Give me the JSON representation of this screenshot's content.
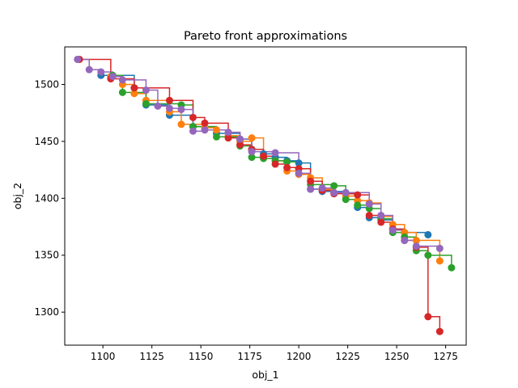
{
  "chart_data": {
    "type": "line",
    "title": "Pareto front approximations",
    "xlabel": "obj_1",
    "ylabel": "obj_2",
    "xlim": [
      1080.5,
      1285.5
    ],
    "ylim": [
      1271,
      1533
    ],
    "xticks": [
      1100,
      1125,
      1150,
      1175,
      1200,
      1225,
      1250,
      1275
    ],
    "yticks": [
      1300,
      1350,
      1400,
      1450,
      1500
    ],
    "grid": false,
    "legend": "none",
    "step_style": "post",
    "series": [
      {
        "color": "#1f77b4",
        "points": [
          [
            1099,
            1508
          ],
          [
            1116,
            1497
          ],
          [
            1122,
            1482
          ],
          [
            1134,
            1473
          ],
          [
            1146,
            1463
          ],
          [
            1158,
            1457
          ],
          [
            1170,
            1452
          ],
          [
            1176,
            1443
          ],
          [
            1182,
            1439
          ],
          [
            1188,
            1436
          ],
          [
            1194,
            1433
          ],
          [
            1200,
            1431
          ],
          [
            1206,
            1408
          ],
          [
            1212,
            1406
          ],
          [
            1224,
            1404
          ],
          [
            1230,
            1392
          ],
          [
            1236,
            1383
          ],
          [
            1242,
            1381
          ],
          [
            1248,
            1373
          ],
          [
            1254,
            1370
          ],
          [
            1266,
            1368
          ]
        ]
      },
      {
        "color": "#ff7f0e",
        "points": [
          [
            1104,
            1507
          ],
          [
            1110,
            1500
          ],
          [
            1116,
            1492
          ],
          [
            1122,
            1486
          ],
          [
            1134,
            1476
          ],
          [
            1140,
            1465
          ],
          [
            1152,
            1462
          ],
          [
            1158,
            1460
          ],
          [
            1164,
            1455
          ],
          [
            1170,
            1450
          ],
          [
            1176,
            1453
          ],
          [
            1182,
            1437
          ],
          [
            1188,
            1433
          ],
          [
            1194,
            1424
          ],
          [
            1200,
            1421
          ],
          [
            1206,
            1418
          ],
          [
            1212,
            1408
          ],
          [
            1218,
            1405
          ],
          [
            1224,
            1402
          ],
          [
            1230,
            1398
          ],
          [
            1236,
            1396
          ],
          [
            1242,
            1384
          ],
          [
            1248,
            1377
          ],
          [
            1254,
            1370
          ],
          [
            1260,
            1363
          ],
          [
            1272,
            1345
          ]
        ]
      },
      {
        "color": "#2ca02c",
        "points": [
          [
            1105,
            1508
          ],
          [
            1110,
            1493
          ],
          [
            1122,
            1483
          ],
          [
            1140,
            1482
          ],
          [
            1146,
            1463
          ],
          [
            1158,
            1454
          ],
          [
            1170,
            1446
          ],
          [
            1176,
            1436
          ],
          [
            1182,
            1435
          ],
          [
            1188,
            1433
          ],
          [
            1194,
            1432
          ],
          [
            1200,
            1426
          ],
          [
            1206,
            1412
          ],
          [
            1218,
            1411
          ],
          [
            1224,
            1399
          ],
          [
            1230,
            1394
          ],
          [
            1236,
            1391
          ],
          [
            1242,
            1382
          ],
          [
            1248,
            1370
          ],
          [
            1254,
            1366
          ],
          [
            1260,
            1354
          ],
          [
            1266,
            1350
          ],
          [
            1278,
            1339
          ]
        ]
      },
      {
        "color": "#d62728",
        "points": [
          [
            1088,
            1522
          ],
          [
            1104,
            1505
          ],
          [
            1116,
            1497
          ],
          [
            1134,
            1486
          ],
          [
            1146,
            1471
          ],
          [
            1152,
            1466
          ],
          [
            1164,
            1453
          ],
          [
            1170,
            1447
          ],
          [
            1176,
            1443
          ],
          [
            1182,
            1437
          ],
          [
            1188,
            1430
          ],
          [
            1194,
            1427
          ],
          [
            1200,
            1426
          ],
          [
            1206,
            1415
          ],
          [
            1212,
            1407
          ],
          [
            1218,
            1404
          ],
          [
            1230,
            1403
          ],
          [
            1236,
            1385
          ],
          [
            1242,
            1379
          ],
          [
            1248,
            1373
          ],
          [
            1254,
            1363
          ],
          [
            1260,
            1357
          ],
          [
            1266,
            1296
          ],
          [
            1272,
            1283
          ]
        ]
      },
      {
        "color": "#9467bd",
        "points": [
          [
            1087,
            1522
          ],
          [
            1093,
            1513
          ],
          [
            1099,
            1511
          ],
          [
            1105,
            1507
          ],
          [
            1110,
            1504
          ],
          [
            1122,
            1495
          ],
          [
            1128,
            1481
          ],
          [
            1134,
            1479
          ],
          [
            1140,
            1478
          ],
          [
            1146,
            1459
          ],
          [
            1152,
            1460
          ],
          [
            1164,
            1458
          ],
          [
            1170,
            1452
          ],
          [
            1176,
            1441
          ],
          [
            1188,
            1440
          ],
          [
            1200,
            1422
          ],
          [
            1206,
            1408
          ],
          [
            1212,
            1409
          ],
          [
            1218,
            1405
          ],
          [
            1224,
            1405
          ],
          [
            1236,
            1395
          ],
          [
            1242,
            1385
          ],
          [
            1248,
            1372
          ],
          [
            1254,
            1363
          ],
          [
            1260,
            1358
          ],
          [
            1272,
            1356
          ]
        ]
      }
    ]
  }
}
